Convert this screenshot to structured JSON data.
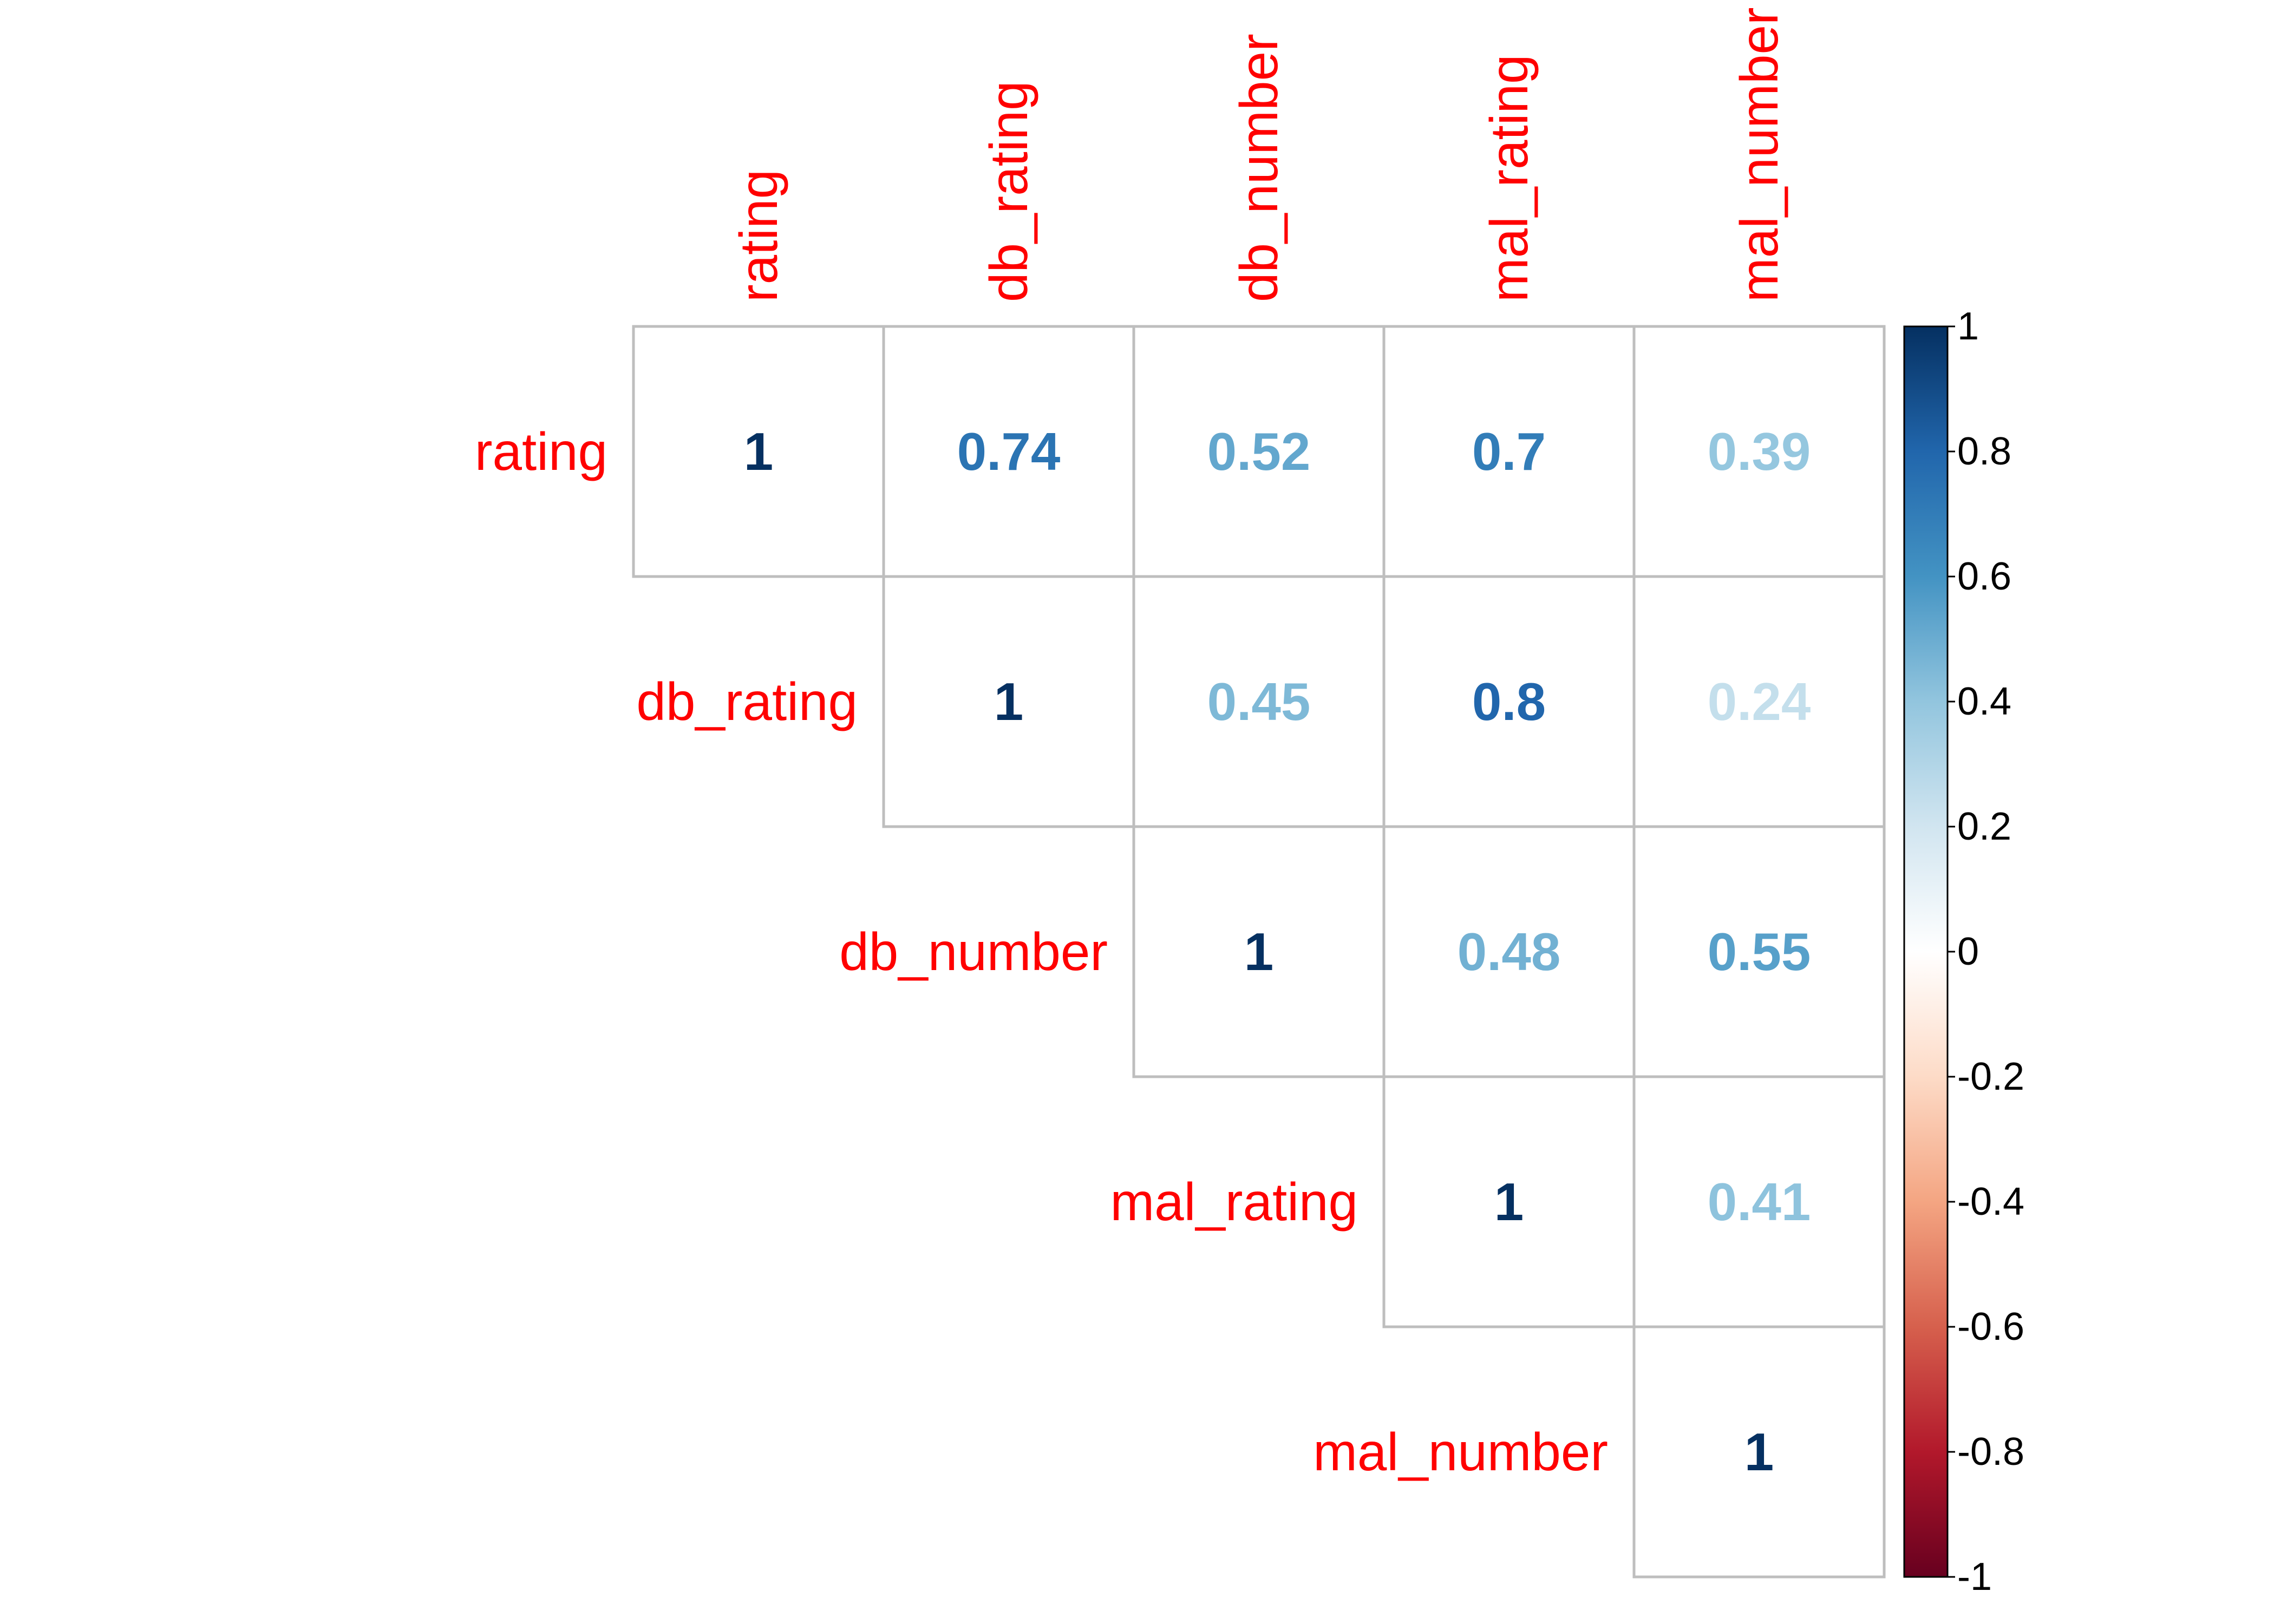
{
  "chart_data": {
    "type": "heatmap",
    "subtype": "correlation-matrix-upper",
    "title": "",
    "variables": [
      "rating",
      "db_rating",
      "db_number",
      "mal_rating",
      "mal_number"
    ],
    "matrix": [
      [
        1,
        0.74,
        0.52,
        0.7,
        0.39
      ],
      [
        null,
        1,
        0.45,
        0.8,
        0.24
      ],
      [
        null,
        null,
        1,
        0.48,
        0.55
      ],
      [
        null,
        null,
        null,
        1,
        0.41
      ],
      [
        null,
        null,
        null,
        null,
        1
      ]
    ],
    "value_labels": [
      [
        "1",
        "0.74",
        "0.52",
        "0.7",
        "0.39"
      ],
      [
        "",
        "1",
        "0.45",
        "0.8",
        "0.24"
      ],
      [
        "",
        "",
        "1",
        "0.48",
        "0.55"
      ],
      [
        "",
        "",
        "",
        "1",
        "0.41"
      ],
      [
        "",
        "",
        "",
        "",
        "1"
      ]
    ],
    "colorbar": {
      "range": [
        -1,
        1
      ],
      "ticks": [
        1,
        0.8,
        0.6,
        0.4,
        0.2,
        0,
        -0.2,
        -0.4,
        -0.6,
        -0.8,
        -1
      ],
      "tick_labels": [
        "1",
        "0.8",
        "0.6",
        "0.4",
        "0.2",
        "0",
        "-0.2",
        "-0.4",
        "-0.6",
        "-0.8",
        "-1"
      ],
      "colors": [
        "#67001F",
        "#B2182B",
        "#D6604D",
        "#F4A582",
        "#FDDBC7",
        "#FFFFFF",
        "#D1E5F0",
        "#92C5DE",
        "#4393C3",
        "#2166AC",
        "#053061"
      ]
    },
    "label_color": "#FF0000",
    "grid_color": "#BEBEBE"
  }
}
